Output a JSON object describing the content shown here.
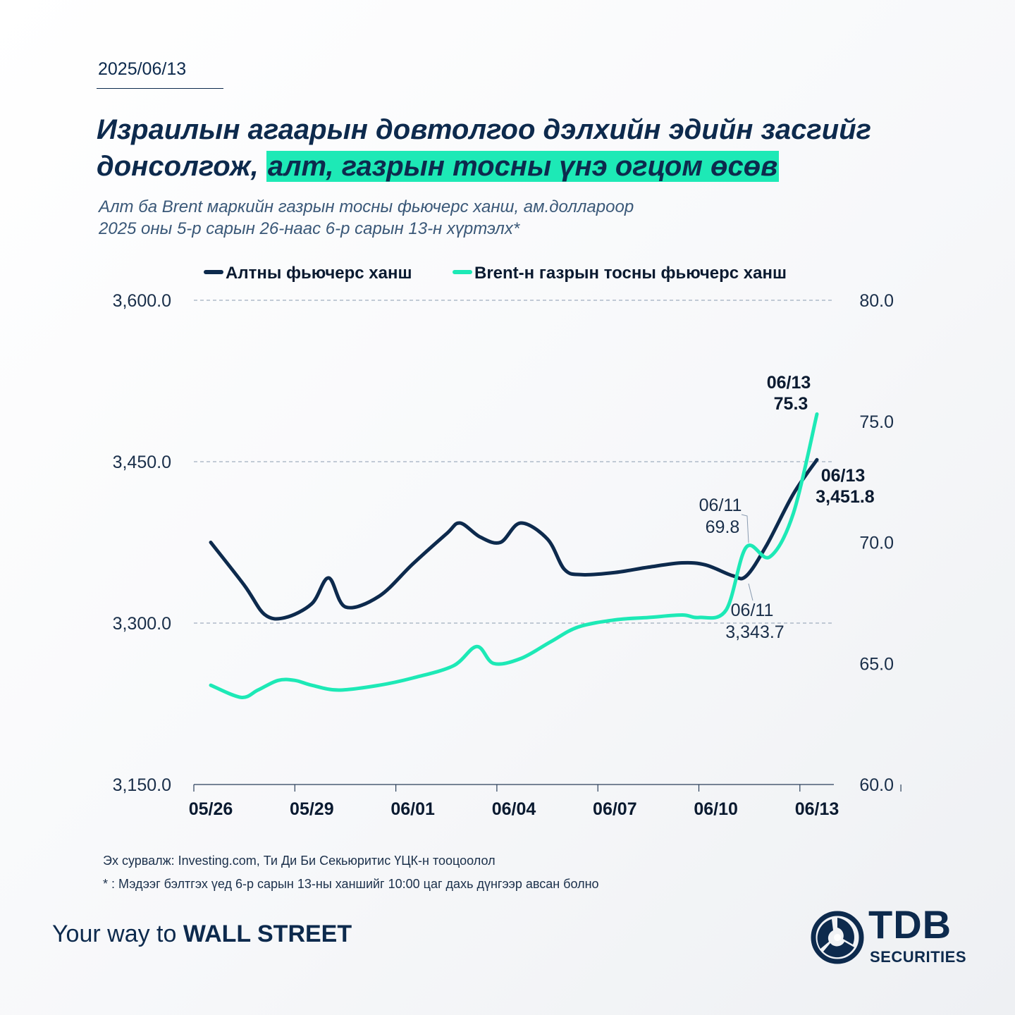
{
  "date": "2025/06/13",
  "title_part1": "Израилын агаарын довтолгоо дэлхийн эдийн засгийг донсолгож,",
  "title_highlight": "алт, газрын тосны үнэ огцом өсөв",
  "subtitle_line1": "Алт ба Brent маркийн газрын тосны фьючерс ханш, ам.доллароор",
  "subtitle_line2": "2025 оны 5-р сарын 26-наас 6-р сарын 13-н хүртэлх*",
  "source": "Эх сурвалж: Investing.com, Ти Ди Би Секьюритис ҮЦК-н тооцоолол",
  "footnote": "* : Мэдээг бэлтгэх үед 6-р сарын 13-ны ханшийг 10:00 цаг дахь дүнгээр авсан болно",
  "slogan_light": "Your way to ",
  "slogan_bold": "WALL STREET",
  "logo_main": "TDB",
  "logo_sub": "SECURITIES",
  "colors": {
    "gold": "#0d2a4d",
    "brent": "#1de9b6",
    "grid": "#8a9bb0",
    "text": "#0d2a4d"
  },
  "chart_data": {
    "type": "line",
    "legend": "top",
    "grid": true,
    "x_tick_labels": [
      "05/26",
      "05/29",
      "06/01",
      "06/04",
      "06/07",
      "06/10",
      "06/13"
    ],
    "x_tick_days": [
      0,
      3,
      6,
      9,
      12,
      15,
      18
    ],
    "y_left": {
      "min": 3150,
      "max": 3600,
      "ticks": [
        "3,600.0",
        "3,450.0",
        "3,300.0",
        "3,150.0"
      ],
      "tick_values": [
        3600,
        3450,
        3300,
        3150
      ]
    },
    "y_right": {
      "min": 60,
      "max": 80,
      "ticks": [
        "80.0",
        "75.0",
        "70.0",
        "65.0",
        "60.0"
      ],
      "tick_values": [
        80,
        75,
        70,
        65,
        60
      ]
    },
    "series": [
      {
        "name": "Алтны фьючерс ханш",
        "axis": "left",
        "x": [
          0,
          1,
          1.6,
          2.2,
          3,
          3.5,
          4,
          5,
          6,
          7,
          7.4,
          8,
          8.6,
          9.2,
          10,
          10.5,
          11,
          12,
          13,
          14,
          14.7,
          15.5,
          15.9,
          16.5,
          17.3,
          18
        ],
        "y": [
          3375,
          3335,
          3308,
          3305,
          3318,
          3342,
          3315,
          3325,
          3355,
          3383,
          3393,
          3380,
          3375,
          3393,
          3378,
          3350,
          3345,
          3347,
          3352,
          3356,
          3354,
          3344,
          3343.7,
          3372,
          3420,
          3451.8
        ]
      },
      {
        "name": "Brent-н газрын тосны фьючерс ханш",
        "axis": "right",
        "x": [
          0,
          0.9,
          1.4,
          2,
          2.5,
          3,
          3.8,
          5,
          6,
          7.2,
          7.9,
          8.4,
          9.2,
          10.1,
          10.9,
          12,
          13,
          14,
          14.5,
          15.3,
          15.9,
          16.6,
          17.3,
          18
        ],
        "y": [
          64.1,
          63.6,
          63.9,
          64.3,
          64.3,
          64.1,
          63.9,
          64.1,
          64.4,
          64.9,
          65.7,
          65.0,
          65.2,
          65.9,
          66.5,
          66.8,
          66.9,
          67.0,
          66.9,
          67.2,
          69.8,
          69.4,
          71.2,
          75.3
        ]
      }
    ],
    "annotations": [
      {
        "series": 1,
        "label_date": "06/13",
        "label_value": "75.3",
        "bold": true
      },
      {
        "series": 0,
        "label_date": "06/13",
        "label_value": "3,451.8",
        "bold": true
      },
      {
        "series": 1,
        "label_date": "06/11",
        "label_value": "69.8",
        "bold": false
      },
      {
        "series": 0,
        "label_date": "06/11",
        "label_value": "3,343.7",
        "bold": false
      }
    ]
  }
}
